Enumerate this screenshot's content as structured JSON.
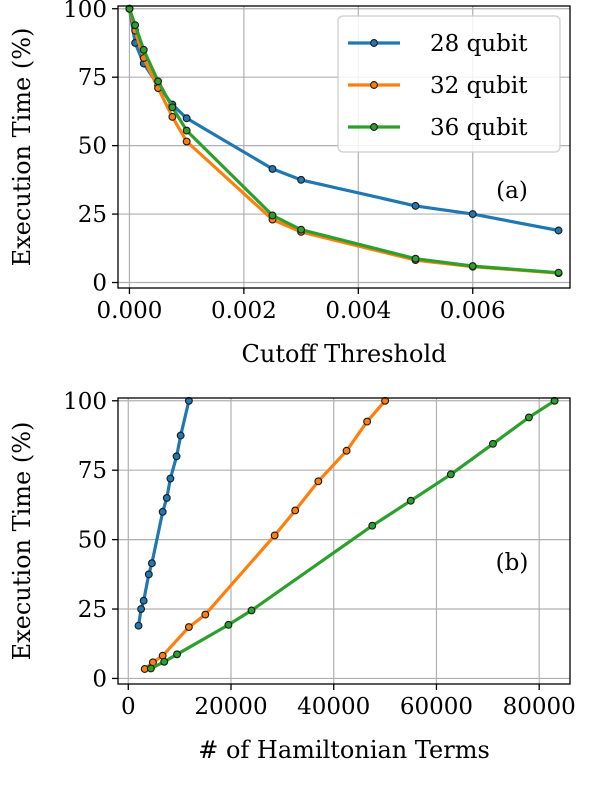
{
  "chart_data": [
    {
      "type": "line",
      "panel_label": "(a)",
      "xlabel": "Cutoff Threshold",
      "ylabel": "Execution Time (%)",
      "xlim": [
        -0.0002,
        0.0077
      ],
      "ylim": [
        -2,
        101
      ],
      "xticks": [
        0.0,
        0.002,
        0.004,
        0.006
      ],
      "xtick_labels": [
        "0.000",
        "0.002",
        "0.004",
        "0.006"
      ],
      "yticks": [
        0,
        25,
        50,
        75,
        100
      ],
      "ytick_labels": [
        "0",
        "25",
        "50",
        "75",
        "100"
      ],
      "grid": true,
      "legend": "top-right",
      "series": [
        {
          "name": "28 qubit",
          "color": "#1f77b4",
          "x": [
            0,
            0.0001,
            0.00025,
            0.0005,
            0.00075,
            0.001,
            0.0025,
            0.003,
            0.005,
            0.006,
            0.0075
          ],
          "y": [
            100,
            87.5,
            80,
            72,
            65,
            60,
            41.5,
            37.5,
            28,
            25,
            19
          ]
        },
        {
          "name": "32 qubit",
          "color": "#ff7f0e",
          "x": [
            0,
            0.0001,
            0.00025,
            0.0005,
            0.00075,
            0.001,
            0.0025,
            0.003,
            0.005,
            0.006,
            0.0075
          ],
          "y": [
            100,
            92,
            82,
            71,
            60.5,
            51.5,
            23,
            18.5,
            8.2,
            5.8,
            3.4
          ]
        },
        {
          "name": "36 qubit",
          "color": "#2ca02c",
          "x": [
            0,
            0.0001,
            0.00025,
            0.0005,
            0.00075,
            0.001,
            0.0025,
            0.003,
            0.005,
            0.006,
            0.0075
          ],
          "y": [
            100,
            94,
            85,
            73.5,
            64,
            55.5,
            24.5,
            19.3,
            8.7,
            6.0,
            3.6
          ]
        }
      ]
    },
    {
      "type": "line",
      "panel_label": "(b)",
      "xlabel": "# of Hamiltonian Terms",
      "ylabel": "Execution Time (%)",
      "xlim": [
        -2000,
        86000
      ],
      "ylim": [
        -2,
        101
      ],
      "xticks": [
        0,
        20000,
        40000,
        60000,
        80000
      ],
      "xtick_labels": [
        "0",
        "20000",
        "40000",
        "60000",
        "80000"
      ],
      "yticks": [
        0,
        25,
        50,
        75,
        100
      ],
      "ytick_labels": [
        "0",
        "25",
        "50",
        "75",
        "100"
      ],
      "grid": true,
      "series": [
        {
          "name": "28 qubit",
          "color": "#1f77b4",
          "x": [
            11800,
            10200,
            9400,
            8200,
            7500,
            6700,
            4600,
            4000,
            3000,
            2500,
            2000
          ],
          "y": [
            100,
            87.5,
            80,
            72,
            65,
            60,
            41.5,
            37.5,
            28,
            25,
            19
          ]
        },
        {
          "name": "32 qubit",
          "color": "#ff7f0e",
          "x": [
            50000,
            46500,
            42500,
            37000,
            32500,
            28500,
            15000,
            11800,
            6700,
            4800,
            3200
          ],
          "y": [
            100,
            92.5,
            82,
            71,
            60.5,
            51.5,
            23,
            18.5,
            8.2,
            5.8,
            3.4
          ]
        },
        {
          "name": "36 qubit",
          "color": "#2ca02c",
          "x": [
            83000,
            78000,
            71000,
            62800,
            55000,
            47500,
            24000,
            19500,
            9500,
            7000,
            4400
          ],
          "y": [
            100,
            94,
            84.5,
            73.5,
            64,
            55,
            24.5,
            19.3,
            8.7,
            6.0,
            3.6
          ]
        }
      ]
    }
  ]
}
